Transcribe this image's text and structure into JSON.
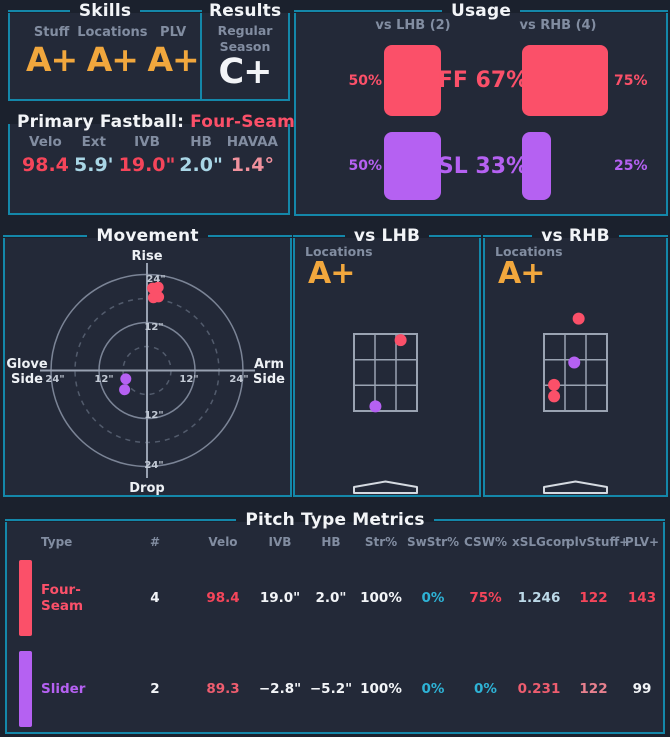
{
  "pitch_colors": {
    "FF": "#fb5069",
    "SL": "#b561f2"
  },
  "accent_colors": {
    "border_teal": "#1487a9",
    "grade_gold": "#f1a73d",
    "background": "#1b212d",
    "panel": "#232938"
  },
  "skills": {
    "title": "Skills",
    "items": [
      {
        "label": "Stuff",
        "grade": "A+"
      },
      {
        "label": "Locations",
        "grade": "A+"
      },
      {
        "label": "PLV",
        "grade": "A+"
      }
    ]
  },
  "results": {
    "title": "Results",
    "label": "Regular Season",
    "grade": "C+"
  },
  "primary_fastball": {
    "title_prefix": "Primary Fastball:",
    "title_value": "Four-Seam",
    "stats": [
      {
        "label": "Velo",
        "value": "98.4",
        "color": "red"
      },
      {
        "label": "Ext",
        "value": "5.9'",
        "color": "pale"
      },
      {
        "label": "IVB",
        "value": "19.0\"",
        "color": "red"
      },
      {
        "label": "HB",
        "value": "2.0\"",
        "color": "pale"
      },
      {
        "label": "HAVAA",
        "value": "1.4°",
        "color": "softpink"
      }
    ]
  },
  "usage": {
    "title": "Usage",
    "lhb_header": "vs LHB (2)",
    "rhb_header": "vs RHB (4)",
    "rows": [
      {
        "code": "FF",
        "center_label": "FF 67%",
        "lhb_pct_label": "50%",
        "rhb_pct_label": "75%",
        "color_key": "pink"
      },
      {
        "code": "SL",
        "center_label": "SL 33%",
        "lhb_pct_label": "50%",
        "rhb_pct_label": "25%",
        "color_key": "purple"
      }
    ]
  },
  "movement": {
    "title": "Movement",
    "top_label": "Rise",
    "bottom_label": "Drop",
    "left_label_line1": "Glove",
    "left_label_line2": "Side",
    "right_label_line1": "Arm",
    "right_label_line2": "Side",
    "tick12": "12\"",
    "tick24": "24\""
  },
  "vs_lhb": {
    "title": "vs LHB",
    "locations_label": "Locations",
    "grade": "A+"
  },
  "vs_rhb": {
    "title": "vs RHB",
    "locations_label": "Locations",
    "grade": "A+"
  },
  "table": {
    "title": "Pitch Type Metrics",
    "headers": [
      "Type",
      "#",
      "Velo",
      "IVB",
      "HB",
      "Str%",
      "SwStr%",
      "CSW%",
      "xSLGcon",
      "plvStuff+",
      "PLV+"
    ],
    "rows": [
      {
        "type": {
          "t": "Four-Seam",
          "c": "pink"
        },
        "bar": "pink",
        "cells": [
          {
            "t": "4",
            "c": "white"
          },
          {
            "t": "98.4",
            "c": "red"
          },
          {
            "t": "19.0\"",
            "c": "white"
          },
          {
            "t": "2.0\"",
            "c": "white"
          },
          {
            "t": "100%",
            "c": "white"
          },
          {
            "t": "0%",
            "c": "cyan"
          },
          {
            "t": "75%",
            "c": "red"
          },
          {
            "t": "1.246",
            "c": "paler"
          },
          {
            "t": "122",
            "c": "red"
          },
          {
            "t": "143",
            "c": "red"
          }
        ]
      },
      {
        "type": {
          "t": "Slider",
          "c": "purple"
        },
        "bar": "purple",
        "cells": [
          {
            "t": "2",
            "c": "white"
          },
          {
            "t": "89.3",
            "c": "redsoft"
          },
          {
            "t": "−2.8\"",
            "c": "white"
          },
          {
            "t": "−5.2\"",
            "c": "white"
          },
          {
            "t": "100%",
            "c": "white"
          },
          {
            "t": "0%",
            "c": "cyan"
          },
          {
            "t": "0%",
            "c": "cyan"
          },
          {
            "t": "0.231",
            "c": "redsoft"
          },
          {
            "t": "122",
            "c": "salmon"
          },
          {
            "t": "99",
            "c": "white"
          }
        ]
      }
    ]
  },
  "chart_data": [
    {
      "type": "bar",
      "title": "Usage",
      "groups": [
        "vs LHB (2)",
        "vs RHB (4)"
      ],
      "series": [
        {
          "name": "FF",
          "overall_pct": 67,
          "vs_lhb_pct": 50,
          "vs_rhb_pct": 75,
          "color": "#fb5069"
        },
        {
          "name": "SL",
          "overall_pct": 33,
          "vs_lhb_pct": 50,
          "vs_rhb_pct": 25,
          "color": "#b561f2"
        }
      ]
    },
    {
      "type": "scatter",
      "title": "Movement",
      "units": "inches",
      "ylabel_top": "Rise",
      "ylabel_bottom": "Drop",
      "xlabel_left": "Glove Side",
      "xlabel_right": "Arm Side",
      "rings_in": [
        12,
        24
      ],
      "dashed_rings_in": [
        6,
        18
      ],
      "xlim": [
        -27,
        27
      ],
      "ylim": [
        -27,
        27
      ],
      "series": [
        {
          "name": "Four-Seam",
          "color": "#fb5069",
          "points": [
            [
              1.4,
              20.6
            ],
            [
              2.8,
              20.8
            ],
            [
              1.6,
              18.2
            ],
            [
              2.9,
              18.4
            ]
          ]
        },
        {
          "name": "Slider",
          "color": "#b561f2",
          "points": [
            [
              -5.3,
              -2.1
            ],
            [
              -5.6,
              -4.8
            ]
          ]
        }
      ]
    },
    {
      "type": "scatter",
      "title": "vs LHB pitch locations",
      "frame": "strike-zone",
      "series": [
        {
          "name": "Four-Seam",
          "color": "#fb5069",
          "points_zone_frac": [
            [
              0.74,
              0.08
            ]
          ]
        },
        {
          "name": "Slider",
          "color": "#b561f2",
          "points_zone_frac": [
            [
              0.34,
              0.94
            ]
          ]
        }
      ]
    },
    {
      "type": "scatter",
      "title": "vs RHB pitch locations",
      "frame": "strike-zone",
      "series": [
        {
          "name": "Four-Seam",
          "color": "#fb5069",
          "points_zone_frac": [
            [
              0.55,
              -0.2
            ],
            [
              0.16,
              0.66
            ],
            [
              0.16,
              0.81
            ]
          ]
        },
        {
          "name": "Slider",
          "color": "#b561f2",
          "points_zone_frac": [
            [
              0.48,
              0.37
            ]
          ]
        }
      ]
    },
    {
      "type": "table",
      "title": "Pitch Type Metrics",
      "headers": [
        "Type",
        "#",
        "Velo",
        "IVB",
        "HB",
        "Str%",
        "SwStr%",
        "CSW%",
        "xSLGcon",
        "plvStuff+",
        "PLV+"
      ],
      "rows": [
        [
          "Four-Seam",
          4,
          98.4,
          "19.0\"",
          "2.0\"",
          "100%",
          "0%",
          "75%",
          1.246,
          122,
          143
        ],
        [
          "Slider",
          2,
          89.3,
          "-2.8\"",
          "-5.2\"",
          "100%",
          "0%",
          "0%",
          0.231,
          122,
          99
        ]
      ]
    }
  ]
}
